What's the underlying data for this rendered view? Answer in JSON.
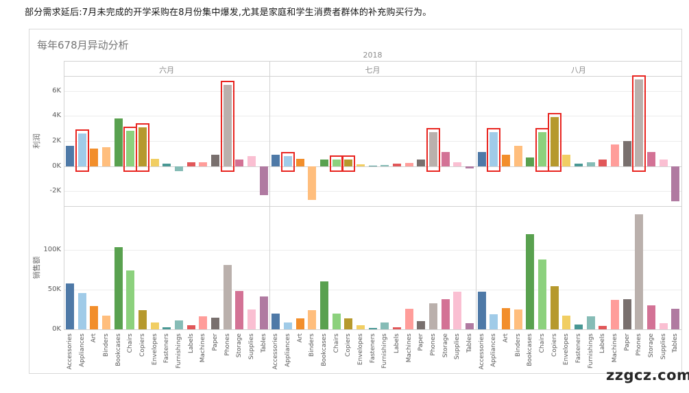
{
  "note": "部分需求延后:7月未完成的开学采购在8月份集中爆发,尤其是家庭和学生消费者群体的补充购买行为。",
  "watermark": "zzgcz.com",
  "chart_data": {
    "type": "bar",
    "title": "每年678月异动分析",
    "year_header": "2018",
    "panels": [
      "六月",
      "七月",
      "八月"
    ],
    "rows": [
      {
        "label": "利润",
        "ticks": [
          6,
          4,
          2,
          0,
          -2
        ],
        "tick_labels": [
          "6K",
          "4K",
          "2K",
          "0K",
          "-2K"
        ],
        "ylim": [
          -3.2,
          7.2
        ],
        "unit": "K"
      },
      {
        "label": "销售额",
        "ticks": [
          100,
          50,
          0
        ],
        "tick_labels": [
          "100K",
          "50K",
          "0K"
        ],
        "ylim": [
          0,
          155
        ],
        "unit": "K"
      }
    ],
    "categories": [
      "Accessories",
      "Appliances",
      "Art",
      "Binders",
      "Bookcases",
      "Chairs",
      "Copiers",
      "Envelopes",
      "Fasteners",
      "Furnishings",
      "Labels",
      "Machines",
      "Paper",
      "Phones",
      "Storage",
      "Supplies",
      "Tables"
    ],
    "colors": {
      "Accessories": "#4e79a7",
      "Appliances": "#a0cbe8",
      "Art": "#f28e2b",
      "Binders": "#ffbe7d",
      "Bookcases": "#59a14f",
      "Chairs": "#8cd17d",
      "Copiers": "#b6992d",
      "Envelopes": "#f1ce63",
      "Fasteners": "#499894",
      "Furnishings": "#86bcb6",
      "Labels": "#e15759",
      "Machines": "#ff9d9a",
      "Paper": "#79706e",
      "Phones": "#bab0ac",
      "Storage": "#d37295",
      "Supplies": "#fabfd2",
      "Tables": "#b07aa1"
    },
    "profit": {
      "六月": [
        1.6,
        2.6,
        1.4,
        1.5,
        3.8,
        2.8,
        3.1,
        0.6,
        0.2,
        -0.4,
        0.3,
        0.3,
        0.9,
        6.5,
        0.5,
        0.8,
        -2.3
      ],
      "七月": [
        0.9,
        0.8,
        0.6,
        -2.7,
        0.5,
        0.5,
        0.5,
        0.15,
        0.05,
        0.1,
        0.2,
        0.25,
        0.5,
        2.7,
        1.1,
        0.3,
        -0.2
      ],
      "八月": [
        1.1,
        2.7,
        0.9,
        1.6,
        0.7,
        2.7,
        3.9,
        0.9,
        0.2,
        0.3,
        0.5,
        1.7,
        2.0,
        6.9,
        1.1,
        0.5,
        -2.8
      ]
    },
    "sales": {
      "六月": [
        58,
        46,
        29,
        17,
        103,
        74,
        24,
        9,
        3,
        11,
        5,
        16,
        15,
        81,
        48,
        25,
        41
      ],
      "七月": [
        20,
        9,
        14,
        24,
        60,
        20,
        14,
        5,
        2,
        9,
        3,
        26,
        10,
        33,
        38,
        47,
        8
      ],
      "八月": [
        47,
        19,
        27,
        25,
        120,
        88,
        54,
        17,
        6,
        16,
        4,
        37,
        38,
        145,
        30,
        8,
        26
      ]
    },
    "highlighted_categories": [
      "Appliances",
      "Chairs",
      "Copiers",
      "Phones"
    ],
    "highlight_color": "#e8241f",
    "legend": "none",
    "grid": "horizontal"
  }
}
